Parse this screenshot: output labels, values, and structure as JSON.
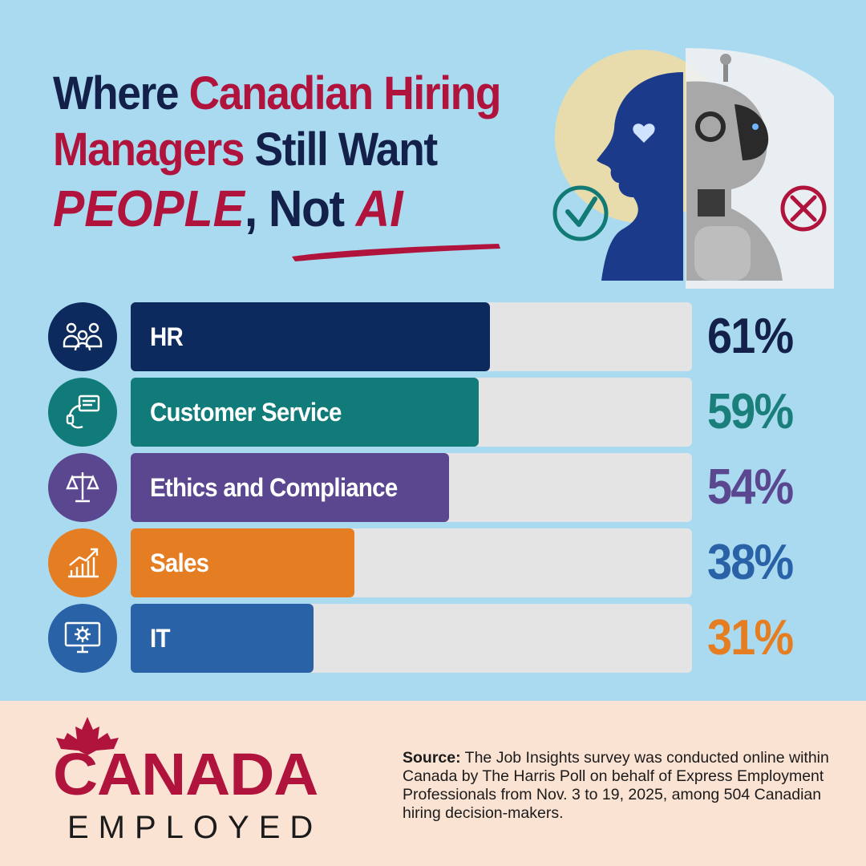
{
  "title": {
    "line1_a": "Where ",
    "line1_b": "Canadian Hiring",
    "line2_a": "Managers",
    "line2_b": " Still Want",
    "line3_a": "PEOPLE",
    "line3_b": ", ",
    "line3_c": "Not ",
    "line3_d": "AI"
  },
  "colors": {
    "navy": "#13204a",
    "red": "#b0143c",
    "background": "#a9daf0",
    "footer_bg": "#fbe3d4",
    "track": "#e4e4e4"
  },
  "chart_data": {
    "type": "bar",
    "orientation": "horizontal",
    "categories": [
      "HR",
      "Customer Service",
      "Ethics and Compliance",
      "Sales",
      "IT"
    ],
    "values": [
      61,
      59,
      54,
      38,
      31
    ],
    "value_labels": [
      "61%",
      "59%",
      "54%",
      "38%",
      "31%"
    ],
    "unit": "%",
    "xlim": [
      0,
      100
    ],
    "bar_colors": [
      "#0c2a5e",
      "#107b78",
      "#5b4790",
      "#e57e22",
      "#2a62a7"
    ],
    "label_colors": [
      "#13204a",
      "#1a7f7a",
      "#5b4790",
      "#2a62a7",
      "#e57e22"
    ],
    "icon_colors": [
      "#0c2a5e",
      "#107b78",
      "#5b4790",
      "#e57e22",
      "#2a62a7"
    ],
    "icons": [
      "people-group-icon",
      "headset-chat-icon",
      "scales-icon",
      "growth-chart-icon",
      "monitor-gear-icon"
    ],
    "title": "",
    "xlabel": "",
    "ylabel": ""
  },
  "footer": {
    "logo_top": "CANADA",
    "logo_bottom": "EMPLOYED",
    "source_label": "Source:",
    "source_text": " The Job Insights survey was conducted online within Canada by The Harris Poll on behalf of Express Employment Professionals from Nov. 3 to 19, 2025, among 504 Canadian hiring decision-makers."
  },
  "illustration": {
    "left_icon": "checkmark-circle-icon",
    "right_icon": "x-circle-icon"
  }
}
